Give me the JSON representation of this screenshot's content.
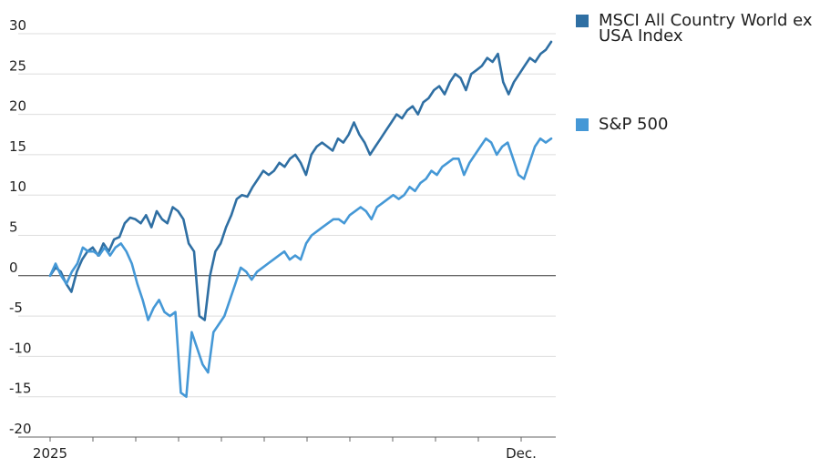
{
  "chart_data": {
    "type": "line",
    "title": "",
    "xlabel": "",
    "ylabel": "",
    "ylim": [
      -20,
      30
    ],
    "yticks": [
      30,
      25,
      20,
      15,
      10,
      5,
      0,
      -5,
      -10,
      -15,
      -20
    ],
    "ytick_labels": [
      "30",
      "25",
      "20",
      "15",
      "10",
      "5",
      "0",
      "-5",
      "-10",
      "-15",
      "-20"
    ],
    "x_tick_labels": [
      "2025",
      "Dec."
    ],
    "legend_placement": "top-right",
    "series": [
      {
        "name": "MSCI All Country World ex USA Index",
        "color": "#2f6fa3",
        "values": [
          0,
          1,
          0.5,
          -1,
          -2,
          0.5,
          2,
          3,
          3.5,
          2.5,
          4,
          3,
          4.5,
          4.8,
          6.5,
          7.2,
          7,
          6.5,
          7.5,
          6,
          8,
          7,
          6.5,
          8.5,
          8,
          7,
          4,
          3,
          -5,
          -5.5,
          0,
          3,
          4,
          6,
          7.5,
          9.5,
          10,
          9.8,
          11,
          12,
          13,
          12.5,
          13,
          14,
          13.5,
          14.5,
          15,
          14,
          12.5,
          15,
          16,
          16.5,
          16,
          15.5,
          17,
          16.5,
          17.5,
          19,
          17.5,
          16.5,
          15,
          16,
          17,
          18,
          19,
          20,
          19.5,
          20.5,
          21,
          20,
          21.5,
          22,
          23,
          23.5,
          22.5,
          24,
          25,
          24.5,
          23,
          25,
          25.5,
          26,
          27,
          26.5,
          27.5,
          24,
          22.5,
          24,
          25,
          26,
          27,
          26.5,
          27.5,
          28,
          29
        ]
      },
      {
        "name": "S&P 500",
        "color": "#4598d6",
        "values": [
          0,
          1.5,
          0,
          -1,
          0.5,
          1.5,
          3.5,
          3,
          3,
          2.5,
          3.5,
          2.5,
          3.5,
          4,
          3,
          1.5,
          -1,
          -3,
          -5.5,
          -4,
          -3,
          -4.5,
          -5,
          -4.5,
          -14.5,
          -15,
          -7,
          -9,
          -11,
          -12,
          -7,
          -6,
          -5,
          -3,
          -1,
          1,
          0.5,
          -0.5,
          0.5,
          1,
          1.5,
          2,
          2.5,
          3,
          2,
          2.5,
          2,
          4,
          5,
          5.5,
          6,
          6.5,
          7,
          7,
          6.5,
          7.5,
          8,
          8.5,
          8,
          7,
          8.5,
          9,
          9.5,
          10,
          9.5,
          10,
          11,
          10.5,
          11.5,
          12,
          13,
          12.5,
          13.5,
          14,
          14.5,
          14.5,
          12.5,
          14,
          15,
          16,
          17,
          16.5,
          15,
          16,
          16.5,
          14.5,
          12.5,
          12,
          14,
          16,
          17,
          16.5,
          17
        ]
      }
    ]
  }
}
